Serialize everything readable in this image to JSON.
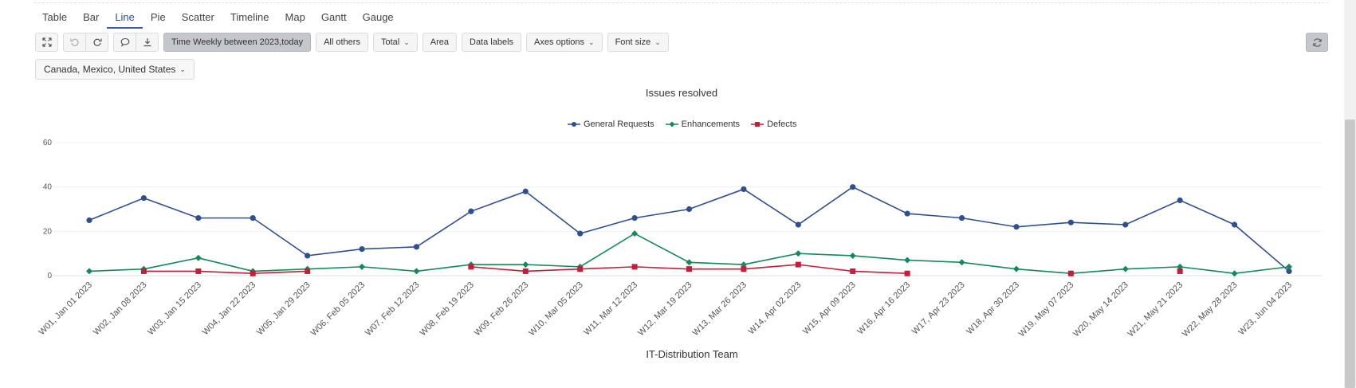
{
  "tabs": [
    {
      "label": "Table",
      "active": false
    },
    {
      "label": "Bar",
      "active": false
    },
    {
      "label": "Line",
      "active": true
    },
    {
      "label": "Pie",
      "active": false
    },
    {
      "label": "Scatter",
      "active": false
    },
    {
      "label": "Timeline",
      "active": false
    },
    {
      "label": "Map",
      "active": false
    },
    {
      "label": "Gantt",
      "active": false
    },
    {
      "label": "Gauge",
      "active": false
    }
  ],
  "toolbar": {
    "fullscreen_icon": "expand-icon",
    "undo_icon": "undo-icon",
    "redo_icon": "redo-icon",
    "comment_icon": "comment-icon",
    "download_icon": "download-icon",
    "time_filter": "Time Weekly between 2023,today",
    "all_others": "All others",
    "total": "Total",
    "area": "Area",
    "data_labels": "Data labels",
    "axes_options": "Axes options",
    "font_size": "Font size",
    "refresh_icon": "refresh-icon"
  },
  "filter": {
    "label": "Canada, Mexico, United States"
  },
  "footer_title": "IT-Distribution Team",
  "chart_data": {
    "type": "line",
    "title": "Issues resolved",
    "xlabel": "IT-Distribution Team",
    "ylabel": "",
    "ylim": [
      0,
      60
    ],
    "yticks": [
      0,
      20,
      40,
      60
    ],
    "grid": true,
    "legend": "top-center",
    "categories": [
      "W01, Jan 01 2023",
      "W02, Jan 08 2023",
      "W03, Jan 15 2023",
      "W04, Jan 22 2023",
      "W05, Jan 29 2023",
      "W06, Feb 05 2023",
      "W07, Feb 12 2023",
      "W08, Feb 19 2023",
      "W09, Feb 26 2023",
      "W10, Mar 05 2023",
      "W11, Mar 12 2023",
      "W12, Mar 19 2023",
      "W13, Mar 26 2023",
      "W14, Apr 02 2023",
      "W15, Apr 09 2023",
      "W16, Apr 16 2023",
      "W17, Apr 23 2023",
      "W18, Apr 30 2023",
      "W19, May 07 2023",
      "W20, May 14 2023",
      "W21, May 21 2023",
      "W22, May 28 2023",
      "W23, Jun 04 2023"
    ],
    "series": [
      {
        "name": "General Requests",
        "color": "#2f4f8f",
        "marker": "circle",
        "values": [
          25,
          35,
          26,
          26,
          9,
          12,
          13,
          29,
          38,
          19,
          26,
          30,
          39,
          23,
          40,
          28,
          26,
          22,
          24,
          23,
          34,
          23,
          2
        ]
      },
      {
        "name": "Enhancements",
        "color": "#138a5a",
        "marker": "diamond",
        "values": [
          2,
          3,
          8,
          2,
          3,
          4,
          2,
          5,
          5,
          4,
          19,
          6,
          5,
          10,
          9,
          7,
          6,
          3,
          1,
          3,
          4,
          1,
          4
        ]
      },
      {
        "name": "Defects",
        "color": "#c41e3a",
        "marker": "square",
        "values": [
          null,
          2,
          2,
          1,
          2,
          null,
          null,
          4,
          2,
          3,
          4,
          3,
          3,
          5,
          2,
          1,
          null,
          null,
          1,
          null,
          2,
          null,
          null
        ]
      }
    ]
  }
}
